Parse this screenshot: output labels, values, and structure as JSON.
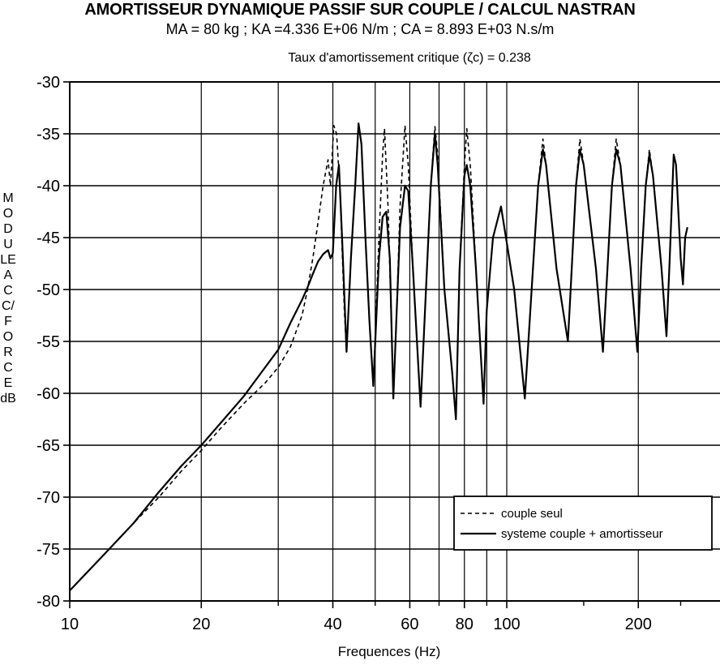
{
  "chart_data": {
    "type": "line",
    "title": "AMORTISSEUR DYNAMIQUE PASSIF SUR COUPLE / CALCUL NASTRAN",
    "subtitle": "MA = 80 kg  ;  KA =4.336 E+06 N/m  ;  CA = 8.893 E+03 N.s/m",
    "subtitle2": "Taux d'amortissement critique (ζc) = 0.238",
    "xlabel": "Frequences (Hz)",
    "ylabel": "MODULE ACC/FORCE dB",
    "x_scale": "log",
    "xlim": [
      10,
      260
    ],
    "ylim": [
      -80,
      -30
    ],
    "grid": true,
    "xticks": [
      10,
      20,
      40,
      60,
      80,
      100,
      200
    ],
    "xtick_labels": [
      "10",
      "20",
      "40",
      "60",
      "80",
      "100",
      "200"
    ],
    "xminor": [
      30,
      50,
      70,
      90,
      150,
      250
    ],
    "yticks": [
      -30,
      -35,
      -40,
      -45,
      -50,
      -55,
      -60,
      -65,
      -70,
      -75,
      -80
    ],
    "ytick_labels": [
      "-30",
      "-35",
      "-40",
      "-45",
      "-50",
      "-55",
      "-60",
      "-65",
      "-70",
      "-75",
      "-80"
    ],
    "legend_position": "lower-right",
    "series": [
      {
        "name": "couple seul",
        "style": "dashed",
        "points": [
          [
            10,
            -79
          ],
          [
            12,
            -75.5
          ],
          [
            14,
            -72.5
          ],
          [
            16,
            -70
          ],
          [
            18,
            -67.5
          ],
          [
            20,
            -65.5
          ],
          [
            22,
            -63.5
          ],
          [
            25,
            -61
          ],
          [
            28,
            -59
          ],
          [
            30,
            -57.5
          ],
          [
            32,
            -55.5
          ],
          [
            34,
            -52.5
          ],
          [
            35,
            -50
          ],
          [
            36,
            -47
          ],
          [
            37,
            -43.5
          ],
          [
            38,
            -40
          ],
          [
            39,
            -37.5
          ],
          [
            39.5,
            -40
          ],
          [
            40.2,
            -34.2
          ],
          [
            40.8,
            -35
          ],
          [
            41.5,
            -40
          ],
          [
            42.5,
            -52
          ],
          [
            43,
            -56
          ],
          [
            44,
            -47
          ],
          [
            45,
            -40
          ],
          [
            45.8,
            -34
          ],
          [
            46.5,
            -36
          ],
          [
            47.5,
            -45
          ],
          [
            48.5,
            -53
          ],
          [
            49.5,
            -59.3
          ],
          [
            51,
            -45
          ],
          [
            52,
            -37
          ],
          [
            52.5,
            -34.5
          ],
          [
            53.5,
            -42
          ],
          [
            55,
            -60
          ],
          [
            56,
            -52
          ],
          [
            57,
            -42
          ],
          [
            58.5,
            -34.2
          ],
          [
            59.5,
            -38
          ],
          [
            61,
            -48
          ],
          [
            63.5,
            -61.3
          ],
          [
            65,
            -52
          ],
          [
            67,
            -40
          ],
          [
            68.5,
            -34.3
          ],
          [
            69.5,
            -37
          ],
          [
            72,
            -50
          ],
          [
            75,
            -58
          ],
          [
            76.5,
            -62.5
          ],
          [
            78,
            -48
          ],
          [
            80,
            -38
          ],
          [
            81,
            -34.5
          ],
          [
            82.5,
            -38
          ],
          [
            85,
            -48
          ],
          [
            88.5,
            -61
          ],
          [
            90,
            -52
          ],
          [
            93,
            -45
          ],
          [
            97,
            -42
          ],
          [
            104,
            -50
          ],
          [
            110,
            -60.5
          ],
          [
            114,
            -50
          ],
          [
            118,
            -40
          ],
          [
            121,
            -35.5
          ],
          [
            123,
            -38
          ],
          [
            130,
            -48
          ],
          [
            138,
            -55
          ],
          [
            140,
            -50
          ],
          [
            144,
            -40
          ],
          [
            147,
            -35.5
          ],
          [
            150,
            -38
          ],
          [
            160,
            -48
          ],
          [
            166,
            -56
          ],
          [
            170,
            -48
          ],
          [
            174,
            -40
          ],
          [
            178,
            -35.5
          ],
          [
            182,
            -38
          ],
          [
            192,
            -48
          ],
          [
            199,
            -56
          ],
          [
            203,
            -48
          ],
          [
            208,
            -40
          ],
          [
            212,
            -36.5
          ],
          [
            216,
            -39
          ],
          [
            226,
            -48
          ],
          [
            232,
            -54.5
          ],
          [
            236,
            -47
          ],
          [
            241,
            -37
          ],
          [
            244,
            -38
          ],
          [
            250,
            -47
          ],
          [
            253,
            -49.5
          ],
          [
            256,
            -45
          ],
          [
            259,
            -44
          ]
        ]
      },
      {
        "name": "systeme couple + amortisseur",
        "style": "solid",
        "points": [
          [
            10,
            -79
          ],
          [
            12,
            -75.5
          ],
          [
            14,
            -72.5
          ],
          [
            16,
            -69.5
          ],
          [
            18,
            -67
          ],
          [
            20,
            -65
          ],
          [
            22,
            -63
          ],
          [
            25,
            -60.3
          ],
          [
            28,
            -57.5
          ],
          [
            30,
            -55.8
          ],
          [
            32,
            -53.2
          ],
          [
            34,
            -51
          ],
          [
            35,
            -49.8
          ],
          [
            36,
            -48.5
          ],
          [
            37,
            -47.3
          ],
          [
            38,
            -46.6
          ],
          [
            39,
            -46.2
          ],
          [
            39.5,
            -47
          ],
          [
            40,
            -46.5
          ],
          [
            40.7,
            -40
          ],
          [
            41.3,
            -38
          ],
          [
            42,
            -45
          ],
          [
            43,
            -56
          ],
          [
            44,
            -47
          ],
          [
            45,
            -40
          ],
          [
            45.8,
            -34
          ],
          [
            46.5,
            -36
          ],
          [
            47.5,
            -45
          ],
          [
            48.5,
            -53
          ],
          [
            49.5,
            -59.3
          ],
          [
            51,
            -47
          ],
          [
            52,
            -43
          ],
          [
            53,
            -42.5
          ],
          [
            54,
            -47
          ],
          [
            55,
            -60.5
          ],
          [
            56,
            -52
          ],
          [
            57,
            -44
          ],
          [
            58.5,
            -40
          ],
          [
            59.5,
            -40.5
          ],
          [
            61,
            -48
          ],
          [
            63.5,
            -61.3
          ],
          [
            65,
            -52
          ],
          [
            67,
            -40
          ],
          [
            68.5,
            -35
          ],
          [
            69.5,
            -38
          ],
          [
            72,
            -50
          ],
          [
            75,
            -58
          ],
          [
            76.5,
            -62.5
          ],
          [
            78,
            -48
          ],
          [
            80,
            -39
          ],
          [
            81,
            -38
          ],
          [
            82.5,
            -40
          ],
          [
            85,
            -48
          ],
          [
            88.5,
            -61
          ],
          [
            90,
            -52
          ],
          [
            93,
            -45
          ],
          [
            97,
            -42
          ],
          [
            104,
            -50
          ],
          [
            110,
            -60.5
          ],
          [
            114,
            -50
          ],
          [
            118,
            -40
          ],
          [
            121,
            -36.5
          ],
          [
            123,
            -38
          ],
          [
            130,
            -48
          ],
          [
            138,
            -55
          ],
          [
            140,
            -50
          ],
          [
            144,
            -40
          ],
          [
            147,
            -36.5
          ],
          [
            150,
            -38
          ],
          [
            160,
            -48
          ],
          [
            166,
            -56
          ],
          [
            170,
            -48
          ],
          [
            174,
            -40
          ],
          [
            178,
            -36.5
          ],
          [
            182,
            -38
          ],
          [
            192,
            -48
          ],
          [
            199,
            -56
          ],
          [
            203,
            -48
          ],
          [
            208,
            -40
          ],
          [
            212,
            -37
          ],
          [
            216,
            -39
          ],
          [
            226,
            -48
          ],
          [
            232,
            -54.5
          ],
          [
            236,
            -47
          ],
          [
            241,
            -37
          ],
          [
            244,
            -38
          ],
          [
            250,
            -47
          ],
          [
            253,
            -49.5
          ],
          [
            256,
            -45
          ],
          [
            259,
            -44
          ]
        ]
      }
    ]
  }
}
